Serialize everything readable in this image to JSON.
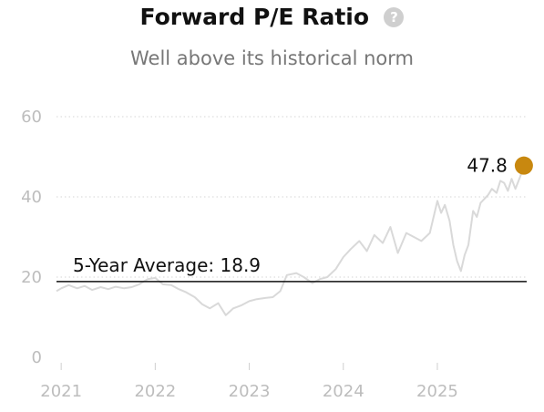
{
  "header": {
    "title": "Forward P/E Ratio",
    "help_icon": "question-circle-icon",
    "help_glyph": "?",
    "subtitle": "Well above its historical norm"
  },
  "chart_data": {
    "type": "line",
    "title": "Forward P/E Ratio",
    "subtitle": "Well above its historical norm",
    "xlabel": "",
    "ylabel": "",
    "ylim": [
      0,
      60
    ],
    "xlim": [
      2020.95,
      2025.95
    ],
    "y_ticks": [
      0,
      20,
      40,
      60
    ],
    "x_ticks": [
      2021,
      2022,
      2023,
      2024,
      2025
    ],
    "x_tick_labels": [
      "2021",
      "2022",
      "2023",
      "2024",
      "2025"
    ],
    "grid": "horizontal dotted",
    "series": [
      {
        "name": "",
        "color": "#d9d9d9",
        "x": [
          2020.95,
          2021.0,
          2021.08,
          2021.17,
          2021.25,
          2021.33,
          2021.42,
          2021.5,
          2021.58,
          2021.67,
          2021.75,
          2021.83,
          2021.92,
          2022.0,
          2022.08,
          2022.17,
          2022.25,
          2022.33,
          2022.42,
          2022.5,
          2022.58,
          2022.67,
          2022.75,
          2022.83,
          2022.92,
          2023.0,
          2023.08,
          2023.17,
          2023.25,
          2023.33,
          2023.4,
          2023.5,
          2023.58,
          2023.67,
          2023.75,
          2023.83,
          2023.92,
          2024.0,
          2024.08,
          2024.17,
          2024.25,
          2024.33,
          2024.42,
          2024.5,
          2024.58,
          2024.67,
          2024.75,
          2024.83,
          2024.92,
          2025.0,
          2025.04,
          2025.08,
          2025.13,
          2025.17,
          2025.21,
          2025.25,
          2025.29,
          2025.33,
          2025.38,
          2025.42,
          2025.46,
          2025.5,
          2025.54,
          2025.58,
          2025.63,
          2025.67,
          2025.71,
          2025.75,
          2025.79,
          2025.83,
          2025.88,
          2025.92
        ],
        "values": [
          16.5,
          17.2,
          18.0,
          17.2,
          17.8,
          16.8,
          17.5,
          17.0,
          17.6,
          17.2,
          17.5,
          18.2,
          19.5,
          19.8,
          18.2,
          18.0,
          17.0,
          16.2,
          15.0,
          13.2,
          12.2,
          13.5,
          10.5,
          12.2,
          13.0,
          14.0,
          14.5,
          14.8,
          15.0,
          16.5,
          20.5,
          21.0,
          20.0,
          18.5,
          19.5,
          20.0,
          22.0,
          25.0,
          27.0,
          29.0,
          26.5,
          30.5,
          28.5,
          32.5,
          26.0,
          31.0,
          30.0,
          29.0,
          31.0,
          39.0,
          36.0,
          38.0,
          34.0,
          28.0,
          24.0,
          21.5,
          25.5,
          28.0,
          36.5,
          35.0,
          38.5,
          39.5,
          40.5,
          42.0,
          41.0,
          44.0,
          43.5,
          41.5,
          44.5,
          42.0,
          45.0,
          47.8
        ]
      }
    ],
    "reference_line": {
      "value": 18.9,
      "label": "5-Year Average: 18.9",
      "color": "#111111"
    },
    "end_point": {
      "x": 2025.92,
      "value": 47.8,
      "label": "47.8",
      "color": "#c8880f"
    }
  }
}
